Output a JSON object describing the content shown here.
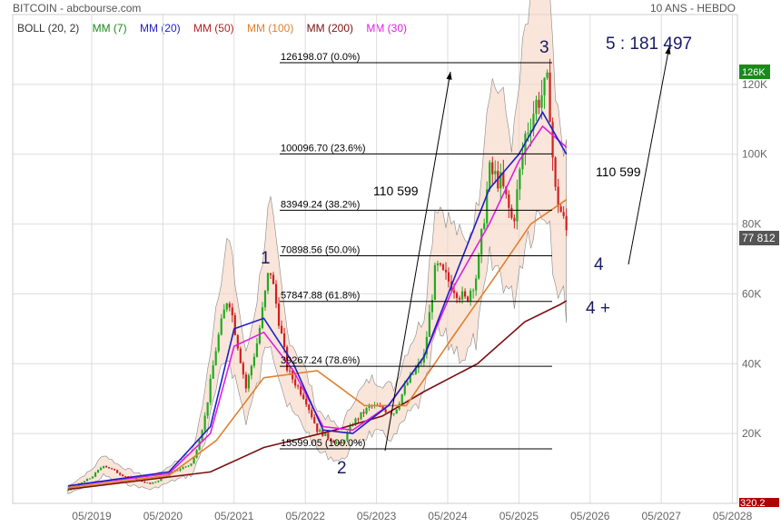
{
  "header": {
    "title": "BITCOIN - abcbourse.com",
    "period": "10 ANS - HEBDO"
  },
  "legend": [
    {
      "label": "BOLL (20, 2)",
      "color": "#333333"
    },
    {
      "label": "MM (7)",
      "color": "#1a8a1a"
    },
    {
      "label": "MM (20)",
      "color": "#1f1fc8"
    },
    {
      "label": "MM (50)",
      "color": "#b22222"
    },
    {
      "label": "MM (100)",
      "color": "#e08030"
    },
    {
      "label": "MM (200)",
      "color": "#7a1010"
    },
    {
      "label": "MM (30)",
      "color": "#e020e0"
    }
  ],
  "chart_data": {
    "type": "line",
    "title": "BITCOIN",
    "x_ticks": [
      "05/2019",
      "05/2020",
      "05/2021",
      "05/2022",
      "05/2023",
      "05/2024",
      "05/2025",
      "05/2026",
      "05/2027",
      "05/2028"
    ],
    "y_ticks": [
      "20K",
      "40K",
      "60K",
      "80K",
      "100K",
      "120K"
    ],
    "ylim": [
      0,
      140000
    ],
    "last_price_label": "77 812",
    "high_label": "126K",
    "bottom_label": "320.2",
    "series": [
      {
        "name": "BITCOIN",
        "kind": "candles",
        "x": [
          "2019-01",
          "2019-05",
          "2019-07",
          "2019-10",
          "2020-03",
          "2020-07",
          "2020-10",
          "2020-12",
          "2021-02",
          "2021-04",
          "2021-07",
          "2021-09",
          "2021-11",
          "2022-02",
          "2022-05",
          "2022-07",
          "2022-11",
          "2023-01",
          "2023-04",
          "2023-08",
          "2023-10",
          "2024-01",
          "2024-03",
          "2024-06",
          "2024-08",
          "2024-10",
          "2024-12",
          "2025-02",
          "2025-04",
          "2025-06",
          "2025-08",
          "2025-10",
          "2025-11",
          "2026-01"
        ],
        "y": [
          3800,
          7500,
          11000,
          8200,
          5500,
          9200,
          11500,
          24000,
          45000,
          60000,
          33000,
          47000,
          68000,
          38000,
          30000,
          21000,
          16500,
          23000,
          28000,
          26000,
          34000,
          42000,
          68000,
          62000,
          58000,
          66000,
          95000,
          92000,
          80000,
          105000,
          115000,
          120000,
          90000,
          78000
        ]
      },
      {
        "name": "MM (200)",
        "x": [
          "2019-01",
          "2020-01",
          "2021-01",
          "2021-10",
          "2022-10",
          "2023-06",
          "2024-01",
          "2024-10",
          "2025-06",
          "2025-12",
          "2026-01"
        ],
        "y": [
          4000,
          6500,
          9000,
          16000,
          21000,
          25000,
          32000,
          40000,
          52000,
          57000,
          58000
        ]
      },
      {
        "name": "MM (100)",
        "x": [
          "2019-01",
          "2020-06",
          "2021-02",
          "2021-10",
          "2022-07",
          "2023-03",
          "2023-10",
          "2024-06",
          "2025-01",
          "2025-07",
          "2026-01"
        ],
        "y": [
          4500,
          8000,
          18000,
          36000,
          38000,
          28000,
          28000,
          48000,
          65000,
          80000,
          87000
        ]
      },
      {
        "name": "MM (30)",
        "x": [
          "2019-01",
          "2020-06",
          "2021-01",
          "2021-05",
          "2021-10",
          "2022-03",
          "2022-08",
          "2023-01",
          "2023-07",
          "2024-01",
          "2024-06",
          "2024-12",
          "2025-05",
          "2025-09",
          "2026-01"
        ],
        "y": [
          5000,
          8500,
          20000,
          45000,
          49000,
          38000,
          22000,
          21000,
          28000,
          42000,
          62000,
          80000,
          98000,
          108000,
          102000
        ]
      },
      {
        "name": "MM (20)",
        "x": [
          "2019-01",
          "2020-06",
          "2021-01",
          "2021-05",
          "2021-10",
          "2022-03",
          "2022-08",
          "2023-01",
          "2023-07",
          "2024-01",
          "2024-06",
          "2024-12",
          "2025-05",
          "2025-09",
          "2026-01"
        ],
        "y": [
          5000,
          9000,
          22000,
          50000,
          53000,
          40000,
          21000,
          20000,
          28000,
          42000,
          64000,
          90000,
          100000,
          112000,
          100000
        ]
      }
    ]
  },
  "fibonacci": [
    {
      "label": "126198.07  (0.0%)",
      "value": 126198.07
    },
    {
      "label": "100096.70  (23.6%)",
      "value": 100096.7
    },
    {
      "label": "83949.24  (38.2%)",
      "value": 83949.24
    },
    {
      "label": "70898.56  (50.0%)",
      "value": 70898.56
    },
    {
      "label": "57847.88  (61.8%)",
      "value": 57847.88
    },
    {
      "label": "39267.24  (78.6%)",
      "value": 39267.24
    },
    {
      "label": "15599.05  (100.0%)",
      "value": 15599.05
    }
  ],
  "waves": [
    "1",
    "2",
    "3",
    "4",
    "4 +"
  ],
  "annotations": {
    "target": "5 : 181 497",
    "leg_1": "110 599",
    "leg_2": "110 599"
  }
}
